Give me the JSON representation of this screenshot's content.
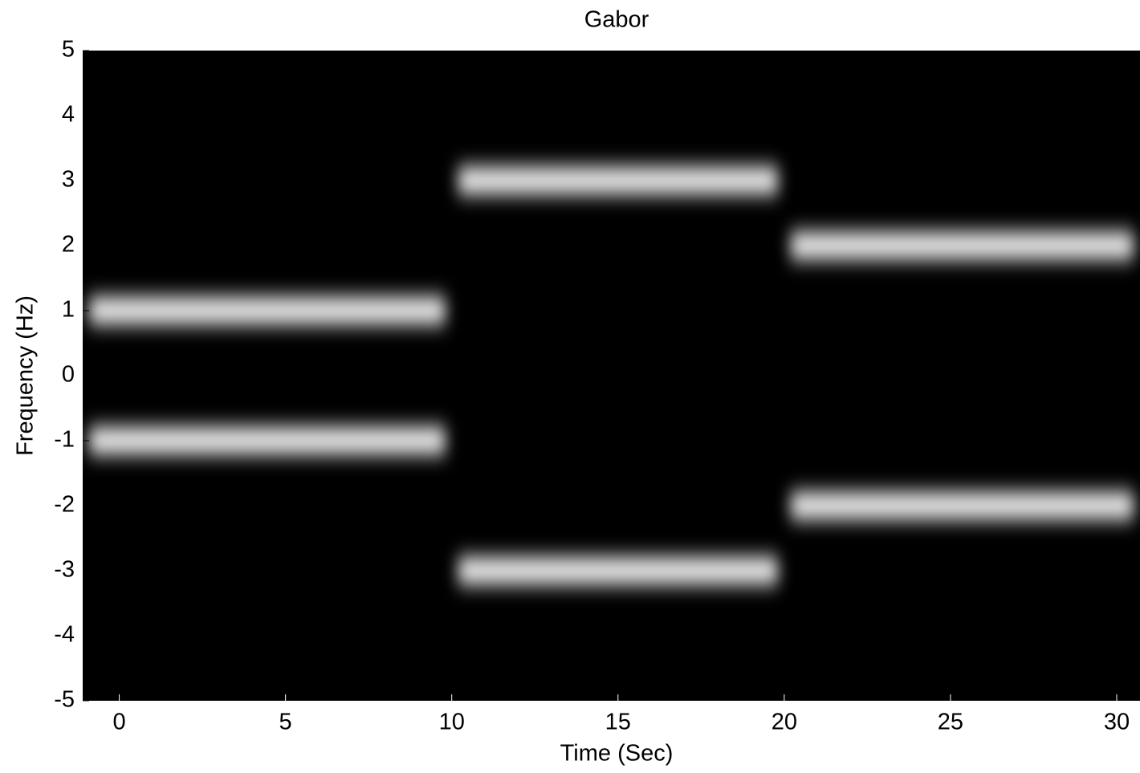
{
  "chart_data": {
    "type": "spectrogram",
    "title": "Gabor",
    "x_label": "Time (Sec)",
    "y_label": "Frequency (Hz)",
    "xlim": [
      -1.1,
      30.7
    ],
    "ylim": [
      -5,
      5
    ],
    "xticks": [
      0,
      5,
      10,
      15,
      20,
      25,
      30
    ],
    "yticks": [
      -5,
      -4,
      -3,
      -2,
      -1,
      0,
      1,
      2,
      3,
      4,
      5
    ],
    "background": "#000000",
    "color": "#ffffff",
    "bands": [
      {
        "x": [
          -1.1,
          10
        ],
        "values": [
          1,
          -1
        ]
      },
      {
        "x": [
          10,
          20
        ],
        "values": [
          3,
          -3
        ]
      },
      {
        "x": [
          20,
          30.7
        ],
        "values": [
          2,
          -2
        ]
      }
    ]
  }
}
